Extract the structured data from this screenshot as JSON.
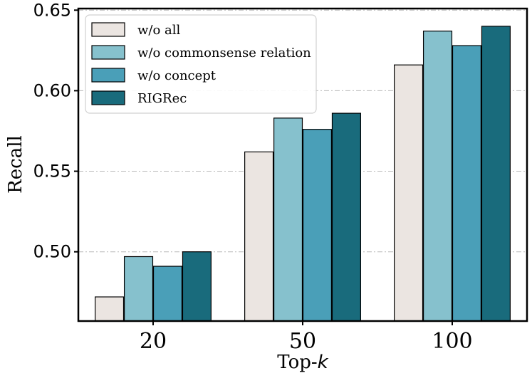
{
  "chart_data": {
    "type": "bar",
    "categories": [
      "20",
      "50",
      "100"
    ],
    "series": [
      {
        "name": "w/o all",
        "color": "#ebe5e1",
        "values": [
          0.472,
          0.562,
          0.616
        ]
      },
      {
        "name": "w/o commonsense relation",
        "color": "#86c1cd",
        "values": [
          0.497,
          0.583,
          0.637
        ]
      },
      {
        "name": "w/o concept",
        "color": "#4a9fb8",
        "values": [
          0.491,
          0.576,
          0.628
        ]
      },
      {
        "name": "RIGRec",
        "color": "#196b7c",
        "values": [
          0.5,
          0.586,
          0.64
        ]
      }
    ],
    "xlabel_main": "Top-",
    "xlabel_var": "k",
    "ylabel": "Recall",
    "yticks": [
      "0.50",
      "0.55",
      "0.60",
      "0.65"
    ],
    "ylim": [
      0.457,
      0.651
    ],
    "grid": "horizontal dash-dot",
    "legend_position": "top-left"
  }
}
